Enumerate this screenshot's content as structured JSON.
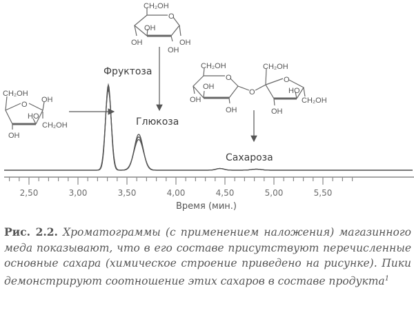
{
  "chart_data": {
    "type": "line",
    "title": "",
    "xlabel": "Время (мин.)",
    "ylabel": "",
    "xlim": [
      2.25,
      5.85
    ],
    "x_ticks": [
      "2,50",
      "3,00",
      "3,50",
      "4,00",
      "4,50",
      "5,00",
      "5,50"
    ],
    "x_tick_values": [
      2.5,
      3.0,
      3.5,
      4.0,
      4.5,
      5.0,
      5.5
    ],
    "minor_tick_step": 0.1,
    "overlaid_traces": 3,
    "peaks": [
      {
        "label": "Фруктоза",
        "retention_time": 3.31,
        "relative_height": [
          100,
          97,
          94
        ]
      },
      {
        "label": "Глюкоза",
        "retention_time": 3.62,
        "relative_height": [
          42,
          39,
          36
        ]
      },
      {
        "label": "Сахароза",
        "retention_time": 4.45,
        "relative_height": [
          2,
          2,
          2
        ]
      },
      {
        "label": "",
        "retention_time": 4.82,
        "relative_height": [
          1.2,
          1.2,
          1.2
        ]
      }
    ],
    "line_color": "#555555"
  },
  "structures": {
    "fructose": {
      "ch2oh_top": "CH₂OH",
      "o": "O",
      "oh1": "OH",
      "ho": "HO",
      "ch2oh2": "CH₂OH",
      "oh2": "OH"
    },
    "glucose": {
      "ch2oh": "CH₂OH",
      "o": "O",
      "oh1": "OH",
      "oh2": "OH",
      "oh3": "OH",
      "oh4": "OH"
    },
    "sucrose": {
      "ch2oh1": "CH₂OH",
      "o1": "O",
      "oh1": "OH",
      "oh2": "OH",
      "oh3": "OH",
      "bridge_o": "O",
      "ch2oh2": "CH₂OH",
      "o2": "O",
      "ho": "HO",
      "ch2oh3": "CH₂OH",
      "oh4": "OH"
    }
  },
  "caption": {
    "label": "Рис. 2.2.",
    "text": "Хроматограммы (с применением наложения) магазинного меда показывают, что в его составе присутствуют перечисленные основные сахара (химическое строение приведено на рисунке). Пики демонстрируют соотношение этих сахаров в составе продукта",
    "footnote": "1"
  }
}
